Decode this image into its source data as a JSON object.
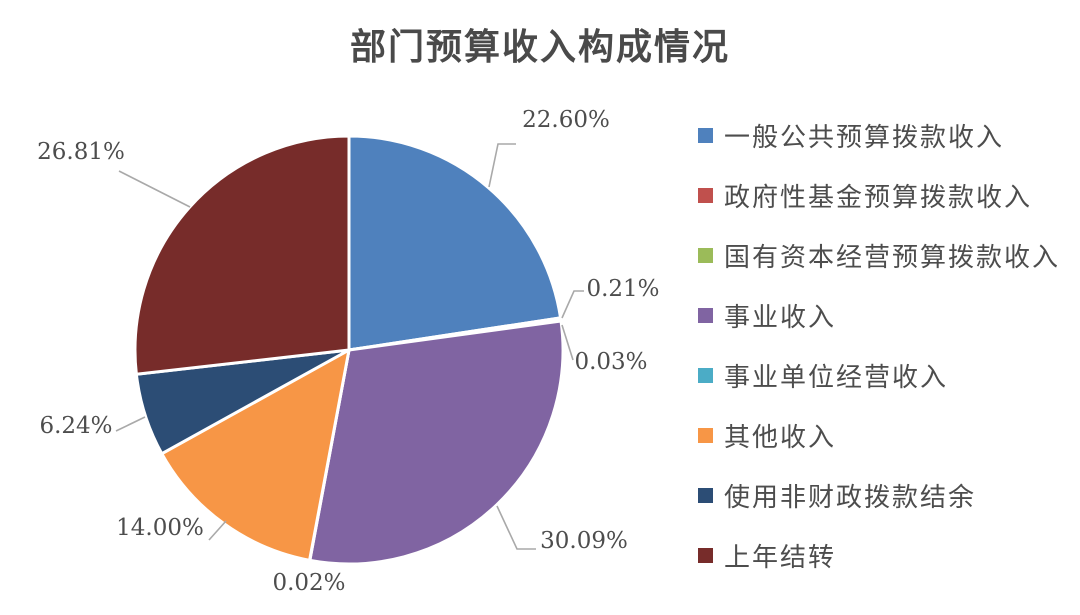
{
  "chart_data": {
    "type": "pie",
    "title": "部门预算收入构成情况",
    "legend_position": "right",
    "start_angle_deg": 0,
    "direction": "clockwise",
    "grid": false,
    "segments": [
      {
        "label": "一般公共预算拨款收入",
        "value": 22.6,
        "display": "22.60%",
        "color": "#4F81BD"
      },
      {
        "label": "政府性基金预算拨款收入",
        "value": 0.21,
        "display": "0.21%",
        "color": "#C0504D"
      },
      {
        "label": "国有资本经营预算拨款收入",
        "value": 0.03,
        "display": "0.03%",
        "color": "#9BBB59"
      },
      {
        "label": "事业收入",
        "value": 30.09,
        "display": "30.09%",
        "color": "#8064A2"
      },
      {
        "label": "事业单位经营收入",
        "value": 0.02,
        "display": "0.02%",
        "color": "#4BACC6"
      },
      {
        "label": "其他收入",
        "value": 14.0,
        "display": "14.00%",
        "color": "#F79646"
      },
      {
        "label": "使用非财政拨款结余",
        "value": 6.24,
        "display": "6.24%",
        "color": "#2C4D75"
      },
      {
        "label": "上年结转",
        "value": 26.81,
        "display": "26.81%",
        "color": "#772C2A"
      }
    ]
  },
  "colors": {
    "background": "#ffffff",
    "title_text": "#4a4a4a",
    "label_text": "#4d4d4d",
    "leader_line": "#a9a9a9",
    "slice_border": "#ffffff"
  }
}
